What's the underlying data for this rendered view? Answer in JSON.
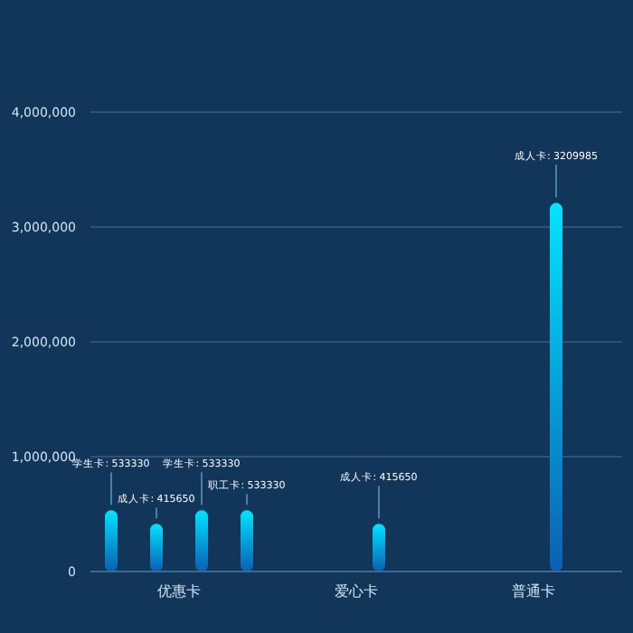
{
  "chart_data": {
    "type": "bar",
    "categories": [
      "优惠卡",
      "爱心卡",
      "普通卡"
    ],
    "series": [
      {
        "color": "#00e4ff",
        "values": [
          533330,
          null,
          null
        ],
        "value_labels": [
          "学生卡: 533330",
          null,
          null
        ]
      },
      {
        "color": "#00e4ff",
        "values": [
          415650,
          null,
          null
        ],
        "value_labels": [
          "成人卡: 415650",
          null,
          null
        ]
      },
      {
        "color": "#00e4ff",
        "values": [
          533330,
          415650,
          3209985
        ],
        "value_labels": [
          "学生卡: 533330",
          "成人卡: 415650",
          "成人卡: 3209985"
        ]
      },
      {
        "color": "#00e4ff",
        "values": [
          533330,
          null,
          null
        ],
        "value_labels": [
          "职工卡: 533330",
          null,
          null
        ]
      }
    ],
    "ylim": [
      0,
      4000000
    ],
    "yticks": [
      0,
      {
        "value": 1000000,
        "label": "1,000,000"
      },
      {
        "value": 2000000,
        "label": "2,000,000"
      },
      {
        "value": 3000000,
        "label": "3,000,000"
      },
      {
        "value": 4000000,
        "label": "4,000,000"
      }
    ],
    "grid": "y",
    "legend": false
  }
}
